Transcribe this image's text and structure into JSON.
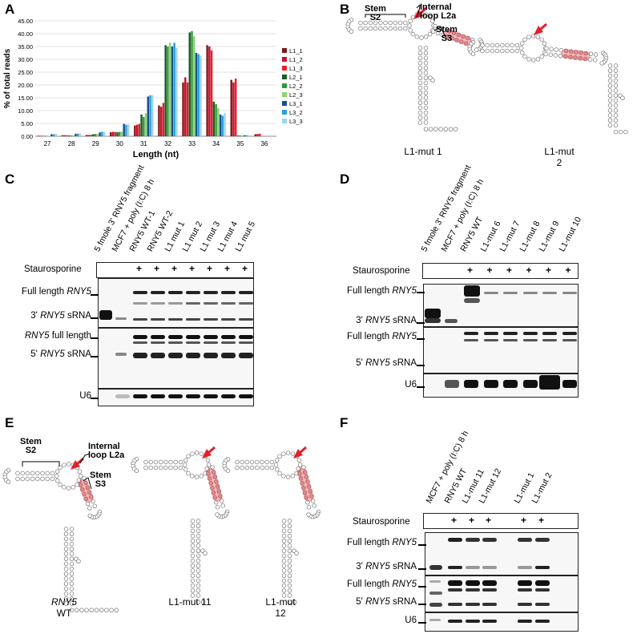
{
  "panels": {
    "a": "A",
    "b": "B",
    "c": "C",
    "d": "D",
    "e": "E",
    "f": "F"
  },
  "chart_data": {
    "type": "bar",
    "ylabel": "% of total reads",
    "xlabel": "Length (nt)",
    "ylim": [
      0,
      45
    ],
    "yticks": [
      "0.00",
      "5.00",
      "10.00",
      "15.00",
      "20.00",
      "25.00",
      "30.00",
      "35.00",
      "40.00",
      "45.00"
    ],
    "categories": [
      "27",
      "28",
      "29",
      "30",
      "31",
      "32",
      "33",
      "34",
      "35",
      "36"
    ],
    "legend_position": "right",
    "series": [
      {
        "name": "L1_1",
        "color": "#7b1b1b",
        "values": [
          0.2,
          0.4,
          0.5,
          1.6,
          4.2,
          12.0,
          21.0,
          35.5,
          22.0,
          0.8
        ]
      },
      {
        "name": "L1_2",
        "color": "#c8102e",
        "values": [
          0.2,
          0.4,
          0.5,
          1.7,
          4.5,
          11.5,
          23.0,
          35.0,
          21.0,
          0.9
        ]
      },
      {
        "name": "L1_3",
        "color": "#e8202a",
        "values": [
          0.2,
          0.4,
          0.6,
          1.7,
          4.8,
          13.0,
          21.0,
          33.5,
          22.5,
          1.0
        ]
      },
      {
        "name": "L2_1",
        "color": "#1a5c22",
        "values": [
          0.1,
          0.3,
          0.8,
          1.6,
          8.5,
          35.5,
          40.5,
          13.5,
          0.3,
          0.0
        ]
      },
      {
        "name": "L2_2",
        "color": "#2e9a3a",
        "values": [
          0.1,
          0.3,
          0.9,
          1.7,
          7.5,
          35.0,
          41.0,
          12.5,
          0.3,
          0.0
        ]
      },
      {
        "name": "L2_3",
        "color": "#8dd470",
        "values": [
          0.1,
          0.4,
          0.9,
          1.8,
          9.0,
          36.5,
          39.0,
          11.0,
          0.3,
          0.0
        ]
      },
      {
        "name": "L3_1",
        "color": "#1b4e8c",
        "values": [
          0.8,
          1.0,
          1.5,
          4.8,
          15.5,
          35.0,
          32.5,
          8.5,
          0.4,
          0.0
        ]
      },
      {
        "name": "L3_2",
        "color": "#2a9fd8",
        "values": [
          0.8,
          1.0,
          1.8,
          4.5,
          16.0,
          36.5,
          32.0,
          8.0,
          0.4,
          0.0
        ]
      },
      {
        "name": "L3_3",
        "color": "#9bd3ef",
        "values": [
          0.9,
          1.1,
          1.7,
          4.6,
          16.0,
          34.5,
          31.5,
          9.0,
          0.4,
          0.0
        ]
      }
    ]
  },
  "panel_b": {
    "labels": {
      "stem_s2": "Stem\nS2",
      "stem_s2_a": "Stem",
      "stem_s2_b": "S2",
      "loop_a": "Internal",
      "loop_b": "loop L2a",
      "stem_s3_a": "Stem",
      "stem_s3_b": "S3"
    },
    "captions": {
      "left": "L1-mut 1",
      "right_a": "L1-mut",
      "right_b": "2"
    }
  },
  "panel_c": {
    "lanes": [
      "5 fmole 3' RNY5 fragment",
      "MCF7 + poly (I:C) 8 h",
      "RNY5 WT-1",
      "RNY5 WT-2",
      "L1 mut 1",
      "L1 mut 2",
      "L1 mut 3",
      "L1 mut 4",
      "L1 mut 5"
    ],
    "staurosporine": "Staurosporine",
    "plus": "+",
    "rows": {
      "full1_a": "Full length ",
      "full1_b": "RNY5",
      "s3_a": "3' ",
      "s3_b": "RNY5",
      "s3_c": " sRNA",
      "full2_a": "RNY5",
      "full2_b": " full length",
      "s5_a": "5' ",
      "s5_b": "RNY5",
      "s5_c": " sRNA",
      "u6": "U6"
    }
  },
  "panel_d": {
    "lanes": [
      "5 fmole 3' RNY5 fragment",
      "MCF7 + poly (I:C) 8 h",
      "RNY5 WT",
      "L1-mut 6",
      "L1-mut 7",
      "L1-mut 8",
      "L1-mut 9",
      "L1-mut 10"
    ],
    "staurosporine": "Staurosporine",
    "plus": "+",
    "rows": {
      "full1_a": "Full length ",
      "full1_b": "RNY5",
      "s3_a": "3' ",
      "s3_b": "RNY5",
      "s3_c": " sRNA",
      "full2_a": "Full length ",
      "full2_b": "RNY5",
      "s5_a": "5' ",
      "s5_b": "RNY5",
      "s5_c": " sRNA",
      "u6": "U6"
    }
  },
  "panel_e": {
    "labels": {
      "stem_s2_a": "Stem",
      "stem_s2_b": "S2",
      "loop_a": "Internal",
      "loop_b": "loop L2a",
      "stem_s3_a": "Stem",
      "stem_s3_b": "S3"
    },
    "captions": {
      "wt_a": "RNY5",
      "wt_b": "WT",
      "m11": "L1-mut 11",
      "m12_a": "L1-mut",
      "m12_b": "12"
    }
  },
  "panel_f": {
    "lanes": [
      "MCF7 + poly (I:C) 8 h",
      "RNY5 WT",
      "L1-mut 11",
      "L1-mut 12",
      "L1-mut 1",
      "L1-mut 2"
    ],
    "staurosporine": "Staurosporine",
    "plus": "+",
    "rows": {
      "full1_a": "Full length ",
      "full1_b": "RNY5",
      "s3_a": "3' ",
      "s3_b": "RNY5",
      "s3_c": " sRNA",
      "full2_a": "Full length ",
      "full2_b": "RNY5",
      "s5_a": "5' ",
      "s5_b": "RNY5",
      "s5_c": " sRNA",
      "u6": "U6"
    }
  }
}
